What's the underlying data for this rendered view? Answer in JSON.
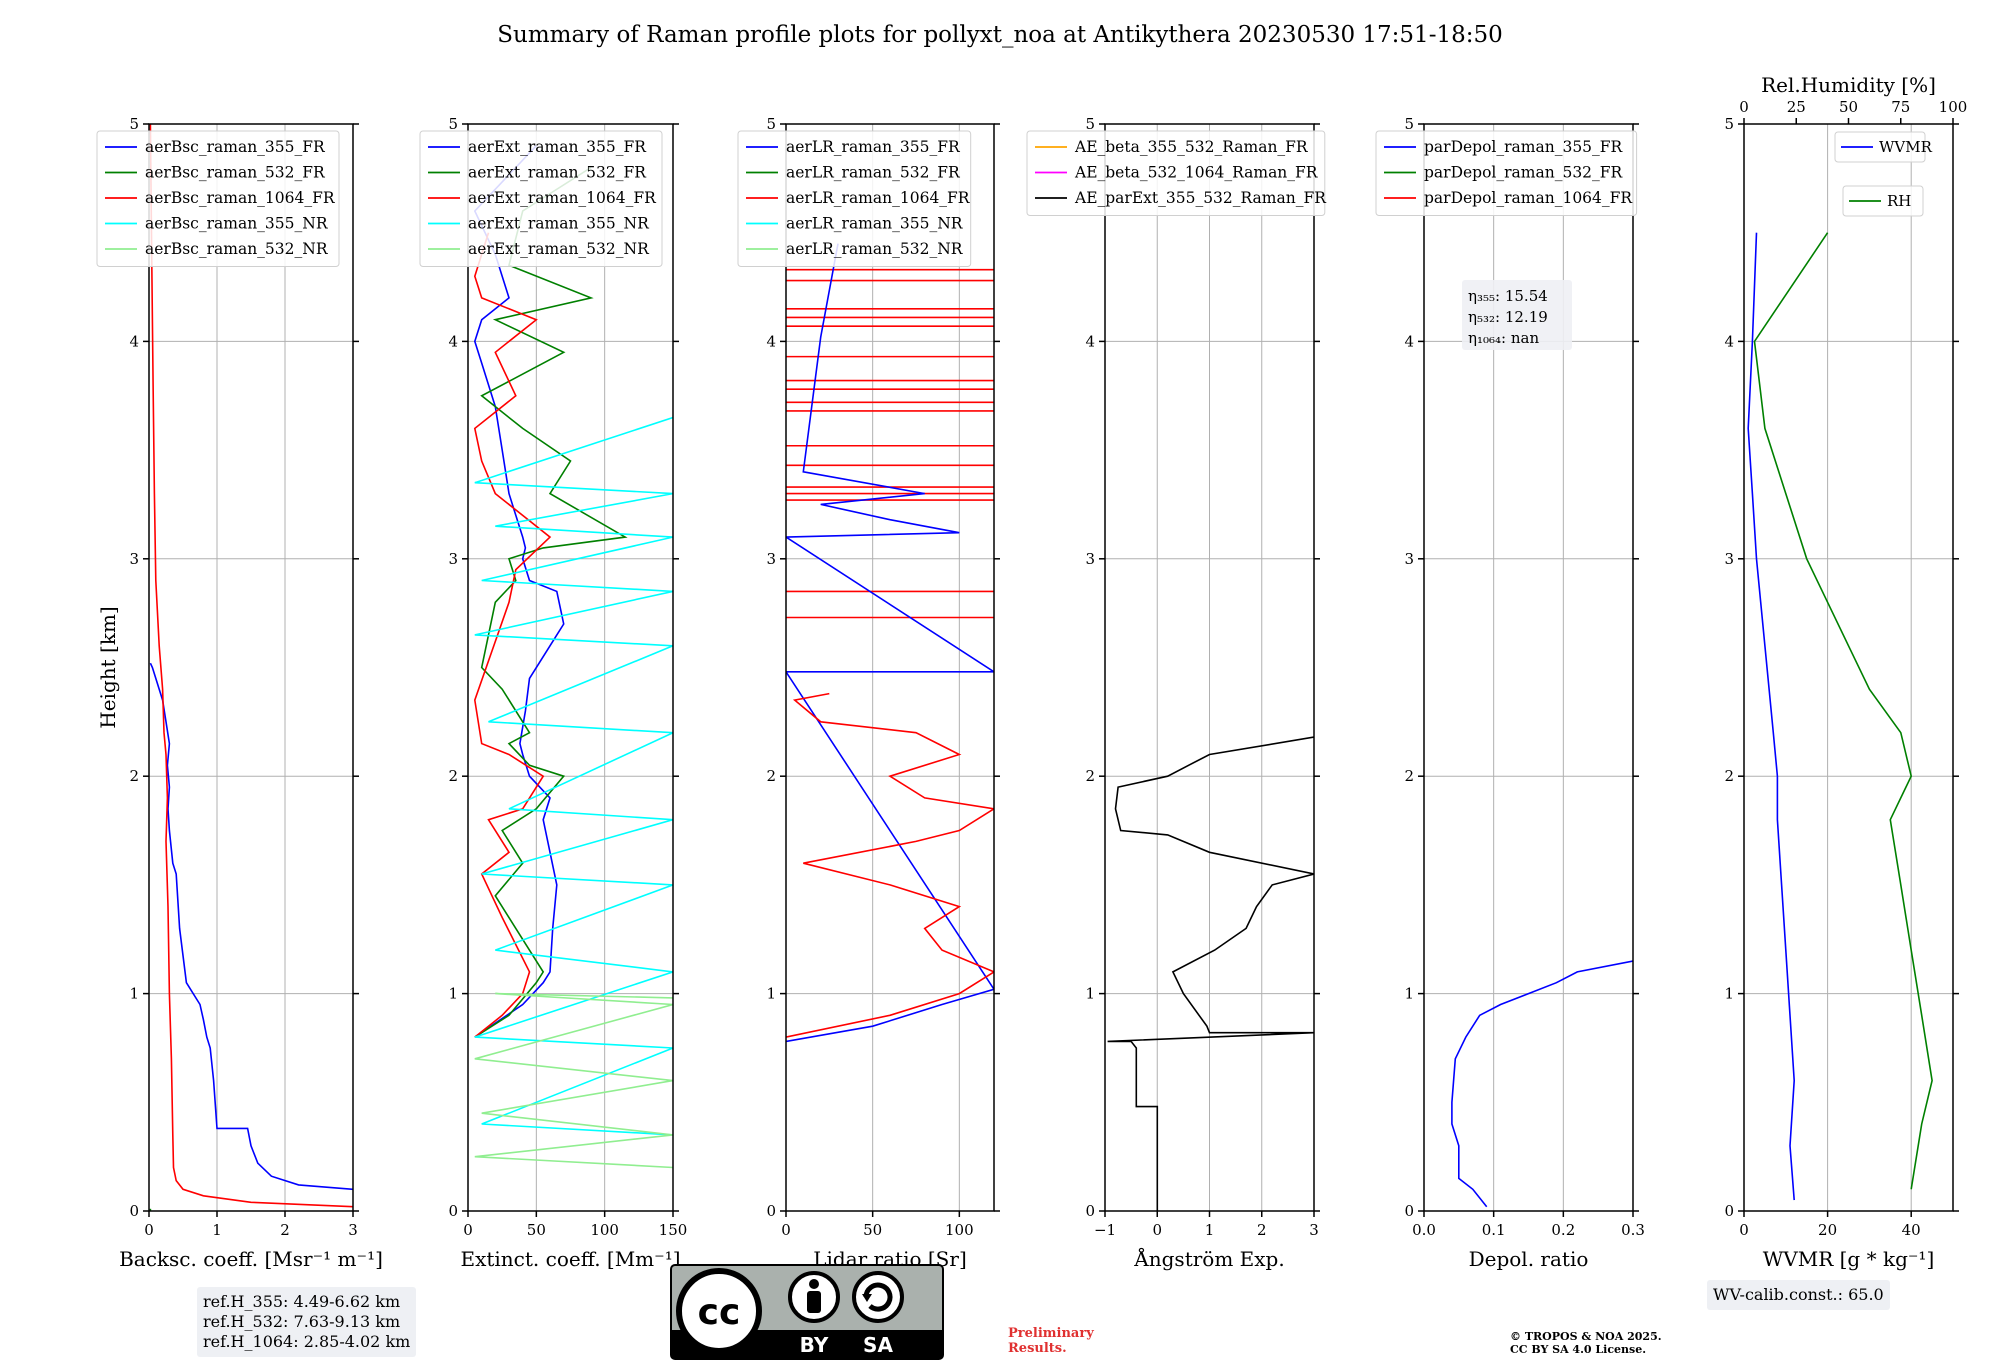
{
  "title": "Summary of Raman profile plots for pollyxt_noa at Antikythera 20230530 17:51-18:50",
  "ref_heights": [
    "ref.H_355: 4.49-6.62 km",
    "ref.H_532: 7.63-9.13 km",
    "ref.H_1064: 2.85-4.02 km"
  ],
  "wv_calib": "WV-calib.const.: 65.0",
  "preliminary": [
    "Preliminary",
    "Results."
  ],
  "copyright": [
    "© TROPOS & NOA 2025.",
    "CC BY SA 4.0 License."
  ],
  "license_badge": {
    "icon": "cc-by-sa-icon",
    "by": "BY",
    "sa": "SA",
    "cc": "cc"
  },
  "colors": {
    "blue": "#0000ff",
    "green": "#008000",
    "red": "#ff0000",
    "cyan": "#00ffff",
    "lightgreen": "#90ee90",
    "orange": "#ffa500",
    "magenta": "#ff00ff",
    "black": "#000000"
  },
  "chart_data": [
    {
      "type": "line",
      "ylabel": "Height [km]",
      "xlabel": "Backsc. coeff. [Msr⁻¹ m⁻¹]",
      "xlim": [
        0,
        3
      ],
      "ylim": [
        0,
        5
      ],
      "xticks": [
        "0",
        "1",
        "2",
        "3"
      ],
      "yticks": [
        "0",
        "1",
        "2",
        "3",
        "4",
        "5"
      ],
      "grid": true,
      "legend": "top-right",
      "series": [
        {
          "name": "aerBsc_raman_355_FR",
          "color": "#0000ff",
          "x": [
            3.0,
            2.2,
            1.8,
            1.6,
            1.5,
            1.45,
            1.0,
            0.95,
            0.9,
            0.85,
            0.8,
            0.75,
            0.55,
            0.45,
            0.4,
            0.35,
            0.3,
            0.28,
            0.3,
            0.27,
            0.3,
            0.25,
            0.2,
            0.1,
            0.05,
            0.02
          ],
          "y": [
            0.1,
            0.12,
            0.16,
            0.22,
            0.3,
            0.38,
            0.38,
            0.6,
            0.75,
            0.8,
            0.88,
            0.95,
            1.05,
            1.3,
            1.55,
            1.6,
            1.75,
            1.85,
            1.95,
            2.05,
            2.15,
            2.25,
            2.35,
            2.45,
            2.5,
            2.52
          ]
        },
        {
          "name": "aerBsc_raman_532_FR",
          "color": "#008000",
          "x": [
            0.02,
            0.02,
            0.02
          ],
          "y": [
            0.0,
            0.005,
            0.01
          ]
        },
        {
          "name": "aerBsc_raman_1064_FR",
          "color": "#ff0000",
          "x": [
            3.0,
            1.5,
            0.8,
            0.5,
            0.4,
            0.36,
            0.35,
            0.33,
            0.3,
            0.28,
            0.25,
            0.27,
            0.25,
            0.22,
            0.2,
            0.15,
            0.1,
            0.08,
            0.06,
            0.04,
            0.02
          ],
          "y": [
            0.02,
            0.04,
            0.07,
            0.1,
            0.14,
            0.2,
            0.35,
            0.7,
            1.0,
            1.4,
            1.7,
            1.9,
            2.1,
            2.2,
            2.4,
            2.6,
            2.9,
            3.3,
            3.8,
            4.4,
            5.0
          ]
        },
        {
          "name": "aerBsc_raman_355_NR",
          "color": "#00ffff",
          "x": [],
          "y": []
        },
        {
          "name": "aerBsc_raman_532_NR",
          "color": "#90ee90",
          "x": [],
          "y": []
        }
      ]
    },
    {
      "type": "line",
      "xlabel": "Extinct. coeff. [Mm⁻¹]",
      "xlim": [
        0,
        150
      ],
      "ylim": [
        0,
        5
      ],
      "xticks": [
        "0",
        "50",
        "100",
        "150"
      ],
      "yticks": [
        "0",
        "1",
        "2",
        "3",
        "4",
        "5"
      ],
      "grid": true,
      "legend": "top-right",
      "series": [
        {
          "name": "aerExt_raman_355_FR",
          "color": "#0000ff",
          "x": [
            5,
            40,
            55,
            60,
            62,
            65,
            60,
            55,
            60,
            45,
            40,
            38,
            42,
            45,
            60,
            70,
            65,
            45,
            40,
            42,
            40,
            35,
            30,
            25,
            20,
            10,
            5,
            10,
            30,
            20,
            5,
            50
          ],
          "y": [
            0.8,
            0.95,
            1.05,
            1.1,
            1.3,
            1.5,
            1.65,
            1.8,
            1.9,
            2.0,
            2.1,
            2.15,
            2.3,
            2.45,
            2.6,
            2.7,
            2.85,
            2.9,
            3.0,
            3.05,
            3.1,
            3.2,
            3.3,
            3.5,
            3.7,
            3.9,
            4.0,
            4.1,
            4.2,
            4.4,
            4.6,
            4.9
          ]
        },
        {
          "name": "aerExt_raman_532_FR",
          "color": "#008000",
          "x": [
            5,
            30,
            50,
            55,
            35,
            20,
            40,
            25,
            50,
            70,
            45,
            30,
            45,
            25,
            10,
            20,
            35,
            30,
            55,
            115,
            60,
            75,
            40,
            10,
            70,
            20,
            90,
            30,
            40,
            90
          ],
          "y": [
            0.8,
            0.9,
            1.05,
            1.1,
            1.3,
            1.45,
            1.6,
            1.75,
            1.85,
            2.0,
            2.05,
            2.15,
            2.2,
            2.4,
            2.5,
            2.8,
            2.9,
            3.0,
            3.05,
            3.1,
            3.3,
            3.45,
            3.6,
            3.75,
            3.95,
            4.1,
            4.2,
            4.35,
            4.6,
            4.8
          ]
        },
        {
          "name": "aerExt_raman_1064_FR",
          "color": "#ff0000",
          "x": [
            5,
            25,
            40,
            45,
            25,
            10,
            30,
            15,
            40,
            55,
            30,
            10,
            5,
            30,
            35,
            60,
            20,
            10,
            5,
            35,
            20,
            50,
            10,
            5,
            15
          ],
          "y": [
            0.8,
            0.9,
            1.0,
            1.1,
            1.35,
            1.55,
            1.65,
            1.8,
            1.85,
            2.0,
            2.1,
            2.15,
            2.35,
            2.8,
            2.95,
            3.1,
            3.3,
            3.45,
            3.6,
            3.75,
            3.95,
            4.1,
            4.2,
            4.3,
            4.5
          ]
        },
        {
          "name": "aerExt_raman_355_NR",
          "color": "#00ffff",
          "x": [
            150,
            10,
            150,
            5,
            150,
            20,
            150,
            10,
            150,
            30,
            150,
            15,
            150,
            5,
            150,
            10,
            150,
            20,
            150,
            5,
            150
          ],
          "y": [
            0.35,
            0.4,
            0.75,
            0.8,
            1.1,
            1.2,
            1.5,
            1.55,
            1.8,
            1.85,
            2.2,
            2.25,
            2.6,
            2.65,
            2.85,
            2.9,
            3.1,
            3.15,
            3.3,
            3.35,
            3.65
          ]
        },
        {
          "name": "aerExt_raman_532_NR",
          "color": "#90ee90",
          "x": [
            150,
            5,
            150,
            10,
            150,
            5,
            150,
            20,
            150
          ],
          "y": [
            0.2,
            0.25,
            0.35,
            0.45,
            0.6,
            0.7,
            0.95,
            1.0,
            0.98
          ]
        }
      ]
    },
    {
      "type": "line",
      "xlabel": "Lidar ratio [Sr]",
      "xlim": [
        0,
        120
      ],
      "ylim": [
        0,
        5
      ],
      "xticks": [
        "0",
        "50",
        "100"
      ],
      "yticks": [
        "0",
        "1",
        "2",
        "3",
        "4",
        "5"
      ],
      "grid": true,
      "legend": "top-right",
      "series": [
        {
          "name": "aerLR_raman_355_FR",
          "color": "#0000ff",
          "x": [
            0,
            50,
            90,
            120,
            0,
            120,
            0,
            100,
            60,
            20,
            80,
            10,
            20,
            30
          ],
          "y": [
            0.78,
            0.85,
            0.95,
            1.02,
            2.48,
            2.48,
            3.1,
            3.12,
            3.18,
            3.25,
            3.3,
            3.4,
            4.02,
            4.45
          ]
        },
        {
          "name": "aerLR_raman_532_FR",
          "color": "#008000",
          "x": [],
          "y": []
        },
        {
          "name": "aerLR_raman_1064_FR",
          "color": "#ff0000",
          "x": [
            0,
            60,
            100,
            120,
            90,
            80,
            100,
            60,
            10,
            75,
            100,
            120,
            80,
            60,
            100,
            75,
            20,
            5,
            25
          ],
          "y": [
            0.8,
            0.9,
            1.0,
            1.1,
            1.2,
            1.3,
            1.4,
            1.5,
            1.6,
            1.7,
            1.75,
            1.85,
            1.9,
            2.0,
            2.1,
            2.2,
            2.25,
            2.35,
            2.38
          ]
        },
        {
          "name": "aerLR_raman_355_NR",
          "color": "#00ffff",
          "x": [],
          "y": []
        },
        {
          "name": "aerLR_raman_532_NR",
          "color": "#90ee90",
          "x": [],
          "y": []
        }
      ],
      "hlines_1064": [
        2.73,
        2.85,
        3.27,
        3.3,
        3.33,
        3.43,
        3.52,
        3.68,
        3.72,
        3.78,
        3.82,
        3.93,
        4.07,
        4.11,
        4.15,
        4.28,
        4.33
      ]
    },
    {
      "type": "line",
      "xlabel": "Ångström Exp.",
      "xlim": [
        -1,
        3
      ],
      "ylim": [
        0,
        5
      ],
      "xticks": [
        "−1",
        "0",
        "1",
        "2",
        "3"
      ],
      "yticks": [
        "0",
        "1",
        "2",
        "3",
        "4",
        "5"
      ],
      "grid": true,
      "legend": "top-right",
      "series": [
        {
          "name": "AE_beta_355_532_Raman_FR",
          "color": "#ffa500",
          "x": [],
          "y": []
        },
        {
          "name": "AE_beta_532_1064_Raman_FR",
          "color": "#ff00ff",
          "x": [],
          "y": []
        },
        {
          "name": "AE_parExt_355_532_Raman_FR",
          "color": "#000000",
          "x": [
            0.0,
            0.0,
            -0.4,
            -0.4,
            -0.5,
            -0.95,
            3.0,
            1.0,
            0.95,
            0.5,
            0.3,
            1.1,
            1.7,
            1.9,
            2.2,
            3.0,
            1.0,
            0.2,
            -0.7,
            -0.8,
            -0.75,
            0.2,
            0.6,
            1.0,
            3.0
          ],
          "y": [
            0.0,
            0.48,
            0.48,
            0.75,
            0.78,
            0.78,
            0.82,
            0.82,
            0.85,
            1.0,
            1.1,
            1.2,
            1.3,
            1.4,
            1.5,
            1.55,
            1.65,
            1.73,
            1.75,
            1.85,
            1.95,
            2.0,
            2.05,
            2.1,
            2.18
          ]
        }
      ]
    },
    {
      "type": "line",
      "xlabel": "Depol. ratio",
      "xlim": [
        0.0,
        0.3
      ],
      "ylim": [
        0,
        5
      ],
      "xticks": [
        "0.0",
        "0.1",
        "0.2",
        "0.3"
      ],
      "yticks": [
        "0",
        "1",
        "2",
        "3",
        "4",
        "5"
      ],
      "grid": true,
      "legend": "top-right",
      "series": [
        {
          "name": "parDepol_raman_355_FR",
          "color": "#0000ff",
          "x": [
            0.09,
            0.07,
            0.05,
            0.05,
            0.04,
            0.04,
            0.045,
            0.06,
            0.08,
            0.11,
            0.15,
            0.19,
            0.22,
            0.3
          ],
          "y": [
            0.02,
            0.1,
            0.15,
            0.3,
            0.4,
            0.5,
            0.7,
            0.8,
            0.9,
            0.95,
            1.0,
            1.05,
            1.1,
            1.15
          ]
        },
        {
          "name": "parDepol_raman_532_FR",
          "color": "#008000",
          "x": [],
          "y": []
        },
        {
          "name": "parDepol_raman_1064_FR",
          "color": "#ff0000",
          "x": [],
          "y": []
        }
      ],
      "eta": [
        "η₃₅₅: 15.54",
        "η₅₃₂: 12.19",
        "η₁₀₆₄: nan"
      ]
    },
    {
      "type": "line",
      "xlabel": "WVMR [g * kg⁻¹]",
      "x2label": "Rel.Humidity [%]",
      "xlim": [
        0,
        50
      ],
      "x2lim": [
        0,
        100
      ],
      "ylim": [
        0,
        5
      ],
      "xticks": [
        "0",
        "20",
        "40"
      ],
      "x2ticks": [
        "0",
        "25",
        "50",
        "75",
        "100"
      ],
      "yticks": [
        "0",
        "1",
        "2",
        "3",
        "4",
        "5"
      ],
      "grid": true,
      "legend": "top-right",
      "series": [
        {
          "name": "WVMR",
          "color": "#0000ff",
          "x": [
            12,
            11,
            12,
            11,
            10,
            9,
            8,
            8,
            7,
            6,
            5,
            4,
            3,
            2,
            1,
            2,
            3
          ],
          "y": [
            0.05,
            0.3,
            0.6,
            0.9,
            1.2,
            1.5,
            1.8,
            2.0,
            2.2,
            2.4,
            2.6,
            2.8,
            3.0,
            3.3,
            3.6,
            4.0,
            4.5
          ]
        },
        {
          "name": "RH",
          "color": "#008000",
          "x": [
            80,
            85,
            90,
            85,
            80,
            75,
            70,
            80,
            75,
            60,
            50,
            40,
            30,
            20,
            10,
            5,
            40
          ],
          "y": [
            0.1,
            0.4,
            0.6,
            0.9,
            1.2,
            1.5,
            1.8,
            2.0,
            2.2,
            2.4,
            2.6,
            2.8,
            3.0,
            3.3,
            3.6,
            4.0,
            4.5
          ]
        }
      ]
    }
  ]
}
